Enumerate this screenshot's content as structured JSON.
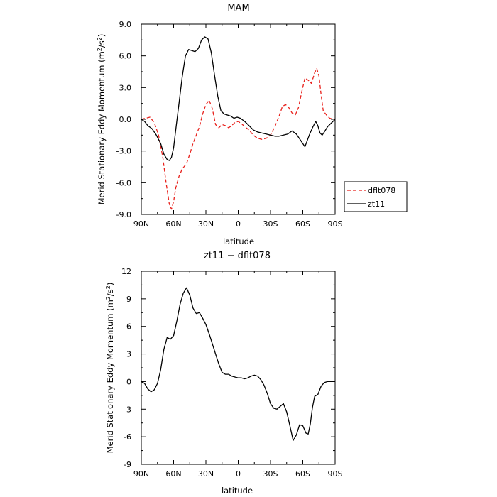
{
  "chart_data": [
    {
      "type": "line",
      "title": "MAM",
      "xlabel": "latitude",
      "ylabel": "Merid Stationary Eddy Momentum (m²/s²)",
      "ylabel_parts": {
        "prefix": "Merid Stationary Eddy Momentum (m",
        "mid": "/s",
        "suffix": ")",
        "sup": "2"
      },
      "xlim": [
        90,
        -90
      ],
      "ylim": [
        -9,
        9
      ],
      "xticks": [
        90,
        60,
        30,
        0,
        -30,
        -60,
        -90
      ],
      "xtick_labels": [
        "90N",
        "60N",
        "30N",
        "0",
        "30S",
        "60S",
        "90S"
      ],
      "yticks": [
        -9,
        -6,
        -3,
        0,
        3,
        6,
        9
      ],
      "ytick_labels": [
        "-9.0",
        "-6.0",
        "-3.0",
        "0.0",
        "3.0",
        "6.0",
        "9.0"
      ],
      "legend": {
        "placement": "outside-right"
      },
      "series": [
        {
          "name": "dflt078",
          "color": "#e8211c",
          "dash": "dashed",
          "x": [
            90,
            86,
            82,
            78,
            74,
            70,
            67,
            64,
            62,
            60,
            58,
            55,
            52,
            48,
            45,
            42,
            39,
            36,
            33,
            30,
            27,
            24,
            21,
            18,
            15,
            12,
            9,
            6,
            3,
            0,
            -3,
            -6,
            -10,
            -14,
            -18,
            -22,
            -26,
            -30,
            -34,
            -38,
            -41,
            -44,
            -47,
            -50,
            -53,
            -56,
            -59,
            -62,
            -65,
            -68,
            -71,
            -73,
            -75,
            -77,
            -79,
            -82,
            -85,
            -88,
            -90
          ],
          "y": [
            0.0,
            0.1,
            0.2,
            -0.3,
            -1.5,
            -3.6,
            -6.0,
            -8.0,
            -8.5,
            -7.8,
            -6.5,
            -5.4,
            -4.7,
            -4.2,
            -3.3,
            -2.3,
            -1.5,
            -0.7,
            0.5,
            1.4,
            1.8,
            1.0,
            -0.5,
            -0.8,
            -0.5,
            -0.6,
            -0.8,
            -0.6,
            -0.3,
            -0.2,
            -0.4,
            -0.7,
            -1.0,
            -1.5,
            -1.8,
            -1.9,
            -1.8,
            -1.5,
            -0.7,
            0.3,
            1.2,
            1.4,
            1.1,
            0.6,
            0.4,
            1.1,
            2.6,
            3.9,
            3.7,
            3.4,
            4.4,
            4.8,
            4.1,
            2.3,
            0.8,
            0.4,
            0.1,
            0.0,
            0.0
          ]
        },
        {
          "name": "zt11",
          "color": "#000000",
          "dash": "solid",
          "x": [
            90,
            87,
            84,
            80,
            76,
            72,
            69,
            66,
            64,
            62,
            60,
            58,
            55,
            52,
            49,
            46,
            43,
            40,
            37,
            34,
            31,
            28,
            25,
            22,
            19,
            16,
            13,
            10,
            7,
            4,
            1,
            -2,
            -6,
            -10,
            -14,
            -18,
            -22,
            -26,
            -30,
            -34,
            -38,
            -42,
            -46,
            -50,
            -54,
            -58,
            -62,
            -66,
            -69,
            -72,
            -74,
            -76,
            -78,
            -80,
            -83,
            -86,
            -88,
            -90
          ],
          "y": [
            0.0,
            -0.2,
            -0.6,
            -0.9,
            -1.5,
            -2.3,
            -3.3,
            -3.8,
            -3.9,
            -3.6,
            -2.7,
            -1.0,
            1.5,
            4.0,
            6.0,
            6.6,
            6.5,
            6.4,
            6.7,
            7.5,
            7.8,
            7.6,
            6.3,
            4.2,
            2.2,
            0.8,
            0.5,
            0.4,
            0.3,
            0.1,
            0.2,
            0.1,
            -0.2,
            -0.6,
            -1.0,
            -1.2,
            -1.3,
            -1.4,
            -1.5,
            -1.6,
            -1.6,
            -1.5,
            -1.4,
            -1.1,
            -1.4,
            -2.0,
            -2.6,
            -1.5,
            -0.8,
            -0.2,
            -0.6,
            -1.3,
            -1.5,
            -1.2,
            -0.7,
            -0.4,
            -0.2,
            0.0
          ]
        }
      ]
    },
    {
      "type": "line",
      "title": "zt11 − dflt078",
      "xlabel": "latitude",
      "ylabel": "Merid Stationary Eddy Momentum (m²/s²)",
      "ylabel_parts": {
        "prefix": "Merid Stationary Eddy Momentum (m",
        "mid": "/s",
        "suffix": ")",
        "sup": "2"
      },
      "xlim": [
        90,
        -90
      ],
      "ylim": [
        -9,
        12
      ],
      "xticks": [
        90,
        60,
        30,
        0,
        -30,
        -60,
        -90
      ],
      "xtick_labels": [
        "90N",
        "60N",
        "30N",
        "0",
        "30S",
        "60S",
        "90S"
      ],
      "yticks": [
        -9,
        -6,
        -3,
        0,
        3,
        6,
        9,
        12
      ],
      "ytick_labels": [
        "-9",
        "-6",
        "-3",
        "0",
        "3",
        "6",
        "9",
        "12"
      ],
      "series": [
        {
          "color": "#000000",
          "dash": "solid",
          "x": [
            90,
            87,
            84,
            81,
            78,
            75,
            72,
            69,
            66,
            63,
            60,
            57,
            54,
            51,
            48,
            45,
            42,
            39,
            36,
            33,
            30,
            27,
            24,
            21,
            18,
            15,
            12,
            9,
            6,
            3,
            0,
            -3,
            -6,
            -9,
            -12,
            -15,
            -18,
            -21,
            -24,
            -27,
            -30,
            -33,
            -36,
            -39,
            -42,
            -45,
            -48,
            -51,
            -54,
            -57,
            -60,
            -63,
            -65,
            -67,
            -69,
            -71,
            -74,
            -77,
            -80,
            -83,
            -86,
            -88,
            -90
          ],
          "y": [
            0.0,
            -0.2,
            -0.8,
            -1.1,
            -0.9,
            -0.2,
            1.3,
            3.5,
            4.8,
            4.6,
            5.0,
            6.6,
            8.4,
            9.6,
            10.2,
            9.4,
            8.0,
            7.4,
            7.5,
            6.9,
            6.2,
            5.2,
            4.1,
            3.0,
            1.9,
            1.0,
            0.8,
            0.8,
            0.6,
            0.5,
            0.4,
            0.4,
            0.3,
            0.4,
            0.6,
            0.7,
            0.6,
            0.2,
            -0.4,
            -1.3,
            -2.4,
            -2.9,
            -3.0,
            -2.7,
            -2.4,
            -3.3,
            -4.8,
            -6.4,
            -5.8,
            -4.7,
            -4.8,
            -5.6,
            -5.7,
            -4.6,
            -2.8,
            -1.6,
            -1.4,
            -0.5,
            -0.1,
            0.0,
            0.0,
            0.0,
            0.0
          ]
        }
      ]
    }
  ]
}
